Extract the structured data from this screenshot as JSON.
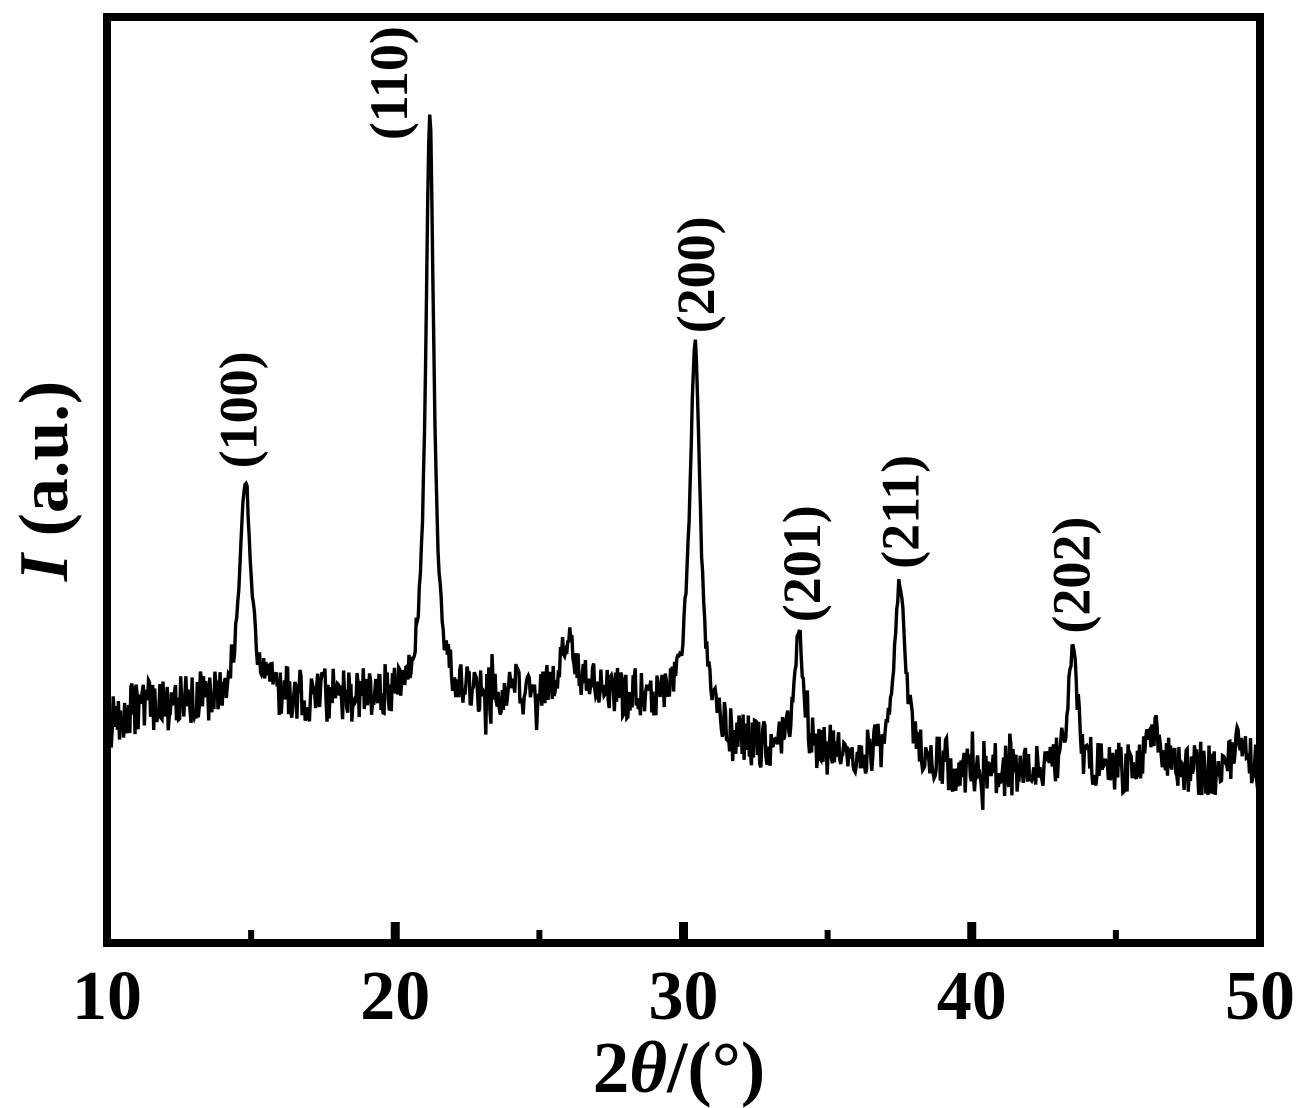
{
  "figure": {
    "background_color": "#ffffff",
    "frame_color": "#000000",
    "trace_color": "#000000",
    "text_color": "#000000"
  },
  "chart_data": {
    "type": "line",
    "title": "",
    "xlabel": "2θ/(°)",
    "xlabel_parts": {
      "pre": "2",
      "theta": "θ",
      "post": "/(°)"
    },
    "ylabel": "I (a.u.)",
    "ylabel_parts": {
      "symbol": "I",
      "rest": " (a.u.)"
    },
    "x_axis": {
      "min": 10,
      "max": 50,
      "tick_values": [
        10,
        20,
        30,
        40,
        50
      ],
      "tick_labels": [
        "10",
        "20",
        "30",
        "40",
        "50"
      ],
      "major_ticks": [
        20,
        30,
        40
      ],
      "minor_ticks": [
        15,
        25,
        35,
        45
      ],
      "ticks_inside": true
    },
    "y_axis": {
      "label": "I (a.u.)",
      "scale": "arbitrary units",
      "ticks_shown": false
    },
    "grid": false,
    "legend": false,
    "peaks": [
      {
        "hkl": "(100)",
        "two_theta": 14.8,
        "rel_height": 0.265,
        "fwhm": 0.44,
        "label_dx": -8,
        "label_gap": 10
      },
      {
        "hkl": "(110)",
        "two_theta": 21.2,
        "rel_height": 0.702,
        "fwhm": 0.34,
        "label_dx": -42,
        "label_gap": -27
      },
      {
        "hkl": "(200)",
        "two_theta": 30.4,
        "rel_height": 0.448,
        "fwhm": 0.42,
        "label_dx": 0,
        "label_gap": 10
      },
      {
        "hkl": "(201)",
        "two_theta": 34.0,
        "rel_height": 0.143,
        "fwhm": 0.32,
        "label_dx": 2,
        "label_gap": 10
      },
      {
        "hkl": "(211)",
        "two_theta": 37.5,
        "rel_height": 0.218,
        "fwhm": 0.48,
        "label_dx": 0,
        "label_gap": 13
      },
      {
        "hkl": "(202)",
        "two_theta": 43.5,
        "rel_height": 0.147,
        "fwhm": 0.36,
        "label_dx": -2,
        "label_gap": 14
      }
    ],
    "unlabeled_bumps": [
      {
        "two_theta": 26.0,
        "rel_height": 0.068,
        "fwhm": 0.7
      },
      {
        "two_theta": 46.3,
        "rel_height": 0.051,
        "fwhm": 0.7
      },
      {
        "two_theta": 49.3,
        "rel_height": 0.047,
        "fwhm": 0.6
      }
    ],
    "baseline_anchors": [
      [
        10,
        0.269
      ],
      [
        11,
        0.284
      ],
      [
        12,
        0.289
      ],
      [
        14,
        0.295
      ],
      [
        16,
        0.298
      ],
      [
        18,
        0.298
      ],
      [
        20,
        0.299
      ],
      [
        21,
        0.297
      ],
      [
        22,
        0.295
      ],
      [
        24,
        0.302
      ],
      [
        26,
        0.299
      ],
      [
        28,
        0.297
      ],
      [
        29.5,
        0.291
      ],
      [
        30,
        0.287
      ],
      [
        31,
        0.257
      ],
      [
        31.8,
        0.243
      ],
      [
        33,
        0.238
      ],
      [
        34.5,
        0.232
      ],
      [
        36,
        0.226
      ],
      [
        37,
        0.222
      ],
      [
        38.5,
        0.214
      ],
      [
        40,
        0.212
      ],
      [
        41.5,
        0.21
      ],
      [
        43,
        0.213
      ],
      [
        44,
        0.21
      ],
      [
        45.5,
        0.208
      ],
      [
        47,
        0.207
      ],
      [
        48.5,
        0.204
      ],
      [
        50,
        0.201
      ]
    ],
    "noise_rel_amplitude": 0.034
  }
}
